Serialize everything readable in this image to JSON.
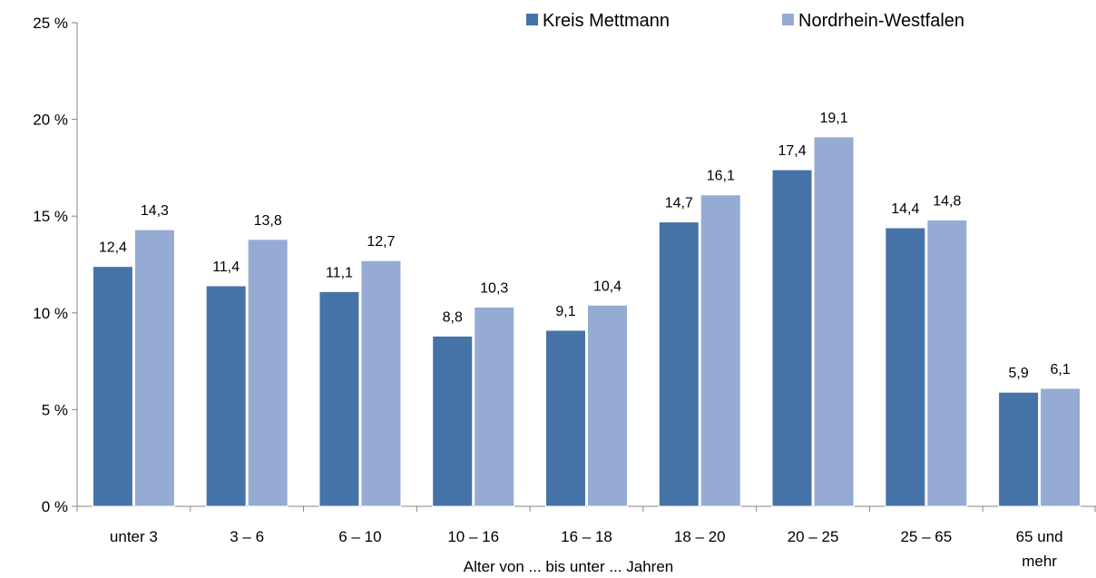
{
  "chart_data": {
    "type": "bar",
    "categories": [
      "unter 3",
      "3 –  6",
      "6 – 10",
      "10 – 16",
      "16 – 18",
      "18 – 20",
      "20 – 25",
      "25 – 65",
      "65 und mehr"
    ],
    "series": [
      {
        "name": "Kreis Mettmann",
        "values": [
          12.4,
          11.4,
          11.1,
          8.8,
          9.1,
          14.7,
          17.4,
          14.4,
          5.9
        ],
        "labels": [
          "12,4",
          "11,4",
          "11,1",
          "8,8",
          "9,1",
          "14,7",
          "17,4",
          "14,4",
          "5,9"
        ],
        "color": "#4673a7"
      },
      {
        "name": "Nordrhein-Westfalen",
        "values": [
          14.3,
          13.8,
          12.7,
          10.3,
          10.4,
          16.1,
          19.1,
          14.8,
          6.1
        ],
        "labels": [
          "14,3",
          "13,8",
          "12,7",
          "10,3",
          "10,4",
          "16,1",
          "19,1",
          "14,8",
          "6,1"
        ],
        "color": "#95abd3"
      }
    ],
    "title": "",
    "xlabel": "Alter von ... bis unter ... Jahren",
    "ylabel": "",
    "ylim": [
      0,
      25
    ],
    "yticks": [
      0,
      5,
      10,
      15,
      20,
      25
    ],
    "ytick_labels": [
      "0 %",
      "5 %",
      "10 %",
      "15 %",
      "20 %",
      "25 %"
    ],
    "grid": false,
    "legend_position": "top-right"
  }
}
